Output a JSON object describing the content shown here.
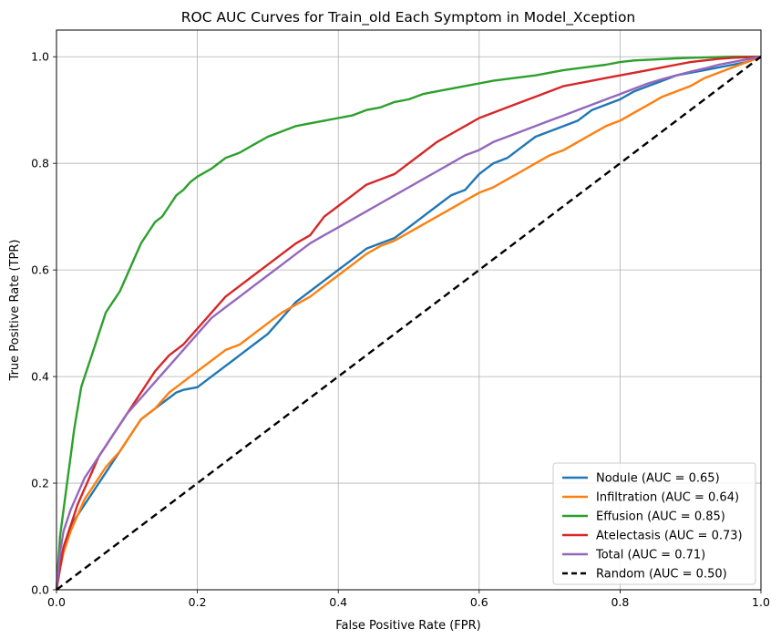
{
  "chart_data": {
    "type": "line",
    "title": "ROC AUC Curves for Train_old Each Symptom in Model_Xception",
    "xlabel": "False Positive Rate (FPR)",
    "ylabel": "True Positive Rate (TPR)",
    "xlim": [
      0.0,
      1.0
    ],
    "ylim": [
      0.0,
      1.05
    ],
    "xticks": [
      0.0,
      0.2,
      0.4,
      0.6,
      0.8,
      1.0
    ],
    "xtick_labels": [
      "0.0",
      "0.2",
      "0.4",
      "0.6",
      "0.8",
      "1.0"
    ],
    "yticks": [
      0.0,
      0.2,
      0.4,
      0.6,
      0.8,
      1.0
    ],
    "ytick_labels": [
      "0.0",
      "0.2",
      "0.4",
      "0.6",
      "0.8",
      "1.0"
    ],
    "grid": true,
    "legend_position": "bottom-right",
    "series": [
      {
        "name": "Nodule (AUC = 0.65)",
        "color": "#1f77b4",
        "dashed": false,
        "x": [
          0.0,
          0.005,
          0.01,
          0.02,
          0.03,
          0.04,
          0.05,
          0.06,
          0.07,
          0.08,
          0.09,
          0.1,
          0.11,
          0.12,
          0.13,
          0.14,
          0.15,
          0.16,
          0.17,
          0.18,
          0.2,
          0.22,
          0.24,
          0.25,
          0.26,
          0.28,
          0.3,
          0.32,
          0.34,
          0.36,
          0.38,
          0.4,
          0.42,
          0.44,
          0.46,
          0.48,
          0.5,
          0.52,
          0.54,
          0.56,
          0.58,
          0.6,
          0.62,
          0.64,
          0.66,
          0.68,
          0.7,
          0.72,
          0.74,
          0.76,
          0.78,
          0.8,
          0.82,
          0.84,
          0.86,
          0.88,
          0.9,
          0.92,
          0.94,
          0.96,
          0.98,
          1.0
        ],
        "y": [
          0.0,
          0.05,
          0.08,
          0.12,
          0.14,
          0.16,
          0.18,
          0.2,
          0.22,
          0.24,
          0.26,
          0.28,
          0.3,
          0.32,
          0.33,
          0.34,
          0.35,
          0.36,
          0.37,
          0.375,
          0.38,
          0.4,
          0.42,
          0.43,
          0.44,
          0.46,
          0.48,
          0.51,
          0.54,
          0.56,
          0.58,
          0.6,
          0.62,
          0.64,
          0.65,
          0.66,
          0.68,
          0.7,
          0.72,
          0.74,
          0.75,
          0.78,
          0.8,
          0.81,
          0.83,
          0.85,
          0.86,
          0.87,
          0.88,
          0.9,
          0.91,
          0.92,
          0.935,
          0.945,
          0.955,
          0.965,
          0.97,
          0.975,
          0.98,
          0.985,
          0.99,
          1.0
        ]
      },
      {
        "name": "Infiltration (AUC = 0.64)",
        "color": "#ff7f0e",
        "dashed": false,
        "x": [
          0.0,
          0.005,
          0.01,
          0.02,
          0.03,
          0.04,
          0.05,
          0.06,
          0.07,
          0.08,
          0.09,
          0.1,
          0.11,
          0.12,
          0.13,
          0.14,
          0.16,
          0.18,
          0.2,
          0.22,
          0.24,
          0.26,
          0.28,
          0.3,
          0.32,
          0.34,
          0.36,
          0.38,
          0.4,
          0.42,
          0.44,
          0.46,
          0.48,
          0.5,
          0.52,
          0.54,
          0.56,
          0.58,
          0.6,
          0.62,
          0.64,
          0.66,
          0.68,
          0.7,
          0.72,
          0.74,
          0.76,
          0.78,
          0.8,
          0.82,
          0.84,
          0.86,
          0.88,
          0.9,
          0.92,
          0.94,
          0.96,
          0.98,
          1.0
        ],
        "y": [
          0.0,
          0.04,
          0.07,
          0.11,
          0.14,
          0.17,
          0.19,
          0.21,
          0.23,
          0.245,
          0.26,
          0.28,
          0.3,
          0.32,
          0.33,
          0.34,
          0.37,
          0.39,
          0.41,
          0.43,
          0.45,
          0.46,
          0.48,
          0.5,
          0.52,
          0.535,
          0.55,
          0.57,
          0.59,
          0.61,
          0.63,
          0.645,
          0.655,
          0.67,
          0.685,
          0.7,
          0.715,
          0.73,
          0.745,
          0.755,
          0.77,
          0.785,
          0.8,
          0.815,
          0.825,
          0.84,
          0.855,
          0.87,
          0.88,
          0.895,
          0.91,
          0.925,
          0.935,
          0.945,
          0.96,
          0.97,
          0.98,
          0.99,
          1.0
        ]
      },
      {
        "name": "Effusion (AUC = 0.85)",
        "color": "#2ca02c",
        "dashed": false,
        "x": [
          0.0,
          0.005,
          0.01,
          0.015,
          0.02,
          0.025,
          0.03,
          0.035,
          0.04,
          0.05,
          0.06,
          0.07,
          0.08,
          0.09,
          0.1,
          0.11,
          0.12,
          0.13,
          0.14,
          0.15,
          0.16,
          0.17,
          0.18,
          0.19,
          0.2,
          0.22,
          0.24,
          0.26,
          0.28,
          0.3,
          0.32,
          0.34,
          0.36,
          0.38,
          0.4,
          0.42,
          0.44,
          0.46,
          0.48,
          0.5,
          0.52,
          0.54,
          0.56,
          0.58,
          0.6,
          0.62,
          0.65,
          0.68,
          0.7,
          0.72,
          0.75,
          0.78,
          0.8,
          0.82,
          0.85,
          0.88,
          0.9,
          0.93,
          0.96,
          0.98,
          1.0
        ],
        "y": [
          0.0,
          0.1,
          0.15,
          0.2,
          0.25,
          0.3,
          0.34,
          0.38,
          0.4,
          0.44,
          0.48,
          0.52,
          0.54,
          0.56,
          0.59,
          0.62,
          0.65,
          0.67,
          0.69,
          0.7,
          0.72,
          0.74,
          0.75,
          0.765,
          0.775,
          0.79,
          0.81,
          0.82,
          0.835,
          0.85,
          0.86,
          0.87,
          0.875,
          0.88,
          0.885,
          0.89,
          0.9,
          0.905,
          0.915,
          0.92,
          0.93,
          0.935,
          0.94,
          0.945,
          0.95,
          0.955,
          0.96,
          0.965,
          0.97,
          0.975,
          0.98,
          0.985,
          0.99,
          0.993,
          0.995,
          0.997,
          0.998,
          0.999,
          1.0,
          1.0,
          1.0
        ]
      },
      {
        "name": "Atelectasis (AUC = 0.73)",
        "color": "#d62728",
        "dashed": false,
        "x": [
          0.0,
          0.005,
          0.01,
          0.02,
          0.03,
          0.04,
          0.05,
          0.06,
          0.07,
          0.08,
          0.09,
          0.1,
          0.12,
          0.14,
          0.16,
          0.18,
          0.2,
          0.22,
          0.24,
          0.26,
          0.28,
          0.3,
          0.32,
          0.34,
          0.36,
          0.38,
          0.4,
          0.42,
          0.44,
          0.46,
          0.48,
          0.5,
          0.52,
          0.54,
          0.56,
          0.58,
          0.6,
          0.62,
          0.64,
          0.66,
          0.68,
          0.7,
          0.72,
          0.74,
          0.76,
          0.78,
          0.8,
          0.82,
          0.84,
          0.86,
          0.88,
          0.9,
          0.92,
          0.94,
          0.96,
          0.98,
          1.0
        ],
        "y": [
          0.0,
          0.04,
          0.08,
          0.12,
          0.16,
          0.19,
          0.22,
          0.25,
          0.27,
          0.29,
          0.31,
          0.33,
          0.37,
          0.41,
          0.44,
          0.46,
          0.49,
          0.52,
          0.55,
          0.57,
          0.59,
          0.61,
          0.63,
          0.65,
          0.665,
          0.7,
          0.72,
          0.74,
          0.76,
          0.77,
          0.78,
          0.8,
          0.82,
          0.84,
          0.855,
          0.87,
          0.885,
          0.895,
          0.905,
          0.915,
          0.925,
          0.935,
          0.945,
          0.95,
          0.955,
          0.96,
          0.965,
          0.97,
          0.975,
          0.98,
          0.985,
          0.99,
          0.993,
          0.996,
          0.998,
          0.999,
          1.0
        ]
      },
      {
        "name": "Total (AUC = 0.71)",
        "color": "#9467bd",
        "dashed": false,
        "x": [
          0.0,
          0.005,
          0.01,
          0.02,
          0.03,
          0.04,
          0.05,
          0.06,
          0.07,
          0.08,
          0.09,
          0.1,
          0.12,
          0.14,
          0.16,
          0.18,
          0.2,
          0.22,
          0.24,
          0.26,
          0.28,
          0.3,
          0.32,
          0.34,
          0.36,
          0.38,
          0.4,
          0.42,
          0.44,
          0.46,
          0.48,
          0.5,
          0.52,
          0.54,
          0.56,
          0.58,
          0.6,
          0.62,
          0.64,
          0.66,
          0.68,
          0.7,
          0.72,
          0.74,
          0.76,
          0.78,
          0.8,
          0.82,
          0.84,
          0.86,
          0.88,
          0.9,
          0.92,
          0.94,
          0.96,
          0.98,
          1.0
        ],
        "y": [
          0.0,
          0.07,
          0.11,
          0.15,
          0.18,
          0.21,
          0.23,
          0.25,
          0.27,
          0.29,
          0.31,
          0.33,
          0.36,
          0.39,
          0.42,
          0.45,
          0.48,
          0.51,
          0.53,
          0.55,
          0.57,
          0.59,
          0.61,
          0.63,
          0.65,
          0.665,
          0.68,
          0.695,
          0.71,
          0.725,
          0.74,
          0.755,
          0.77,
          0.785,
          0.8,
          0.815,
          0.825,
          0.84,
          0.85,
          0.86,
          0.87,
          0.88,
          0.89,
          0.9,
          0.91,
          0.92,
          0.93,
          0.94,
          0.95,
          0.958,
          0.965,
          0.972,
          0.978,
          0.985,
          0.99,
          0.995,
          1.0
        ]
      },
      {
        "name": "Random (AUC = 0.50)",
        "color": "#000000",
        "dashed": true,
        "x": [
          0.0,
          1.0
        ],
        "y": [
          0.0,
          1.0
        ]
      }
    ]
  }
}
